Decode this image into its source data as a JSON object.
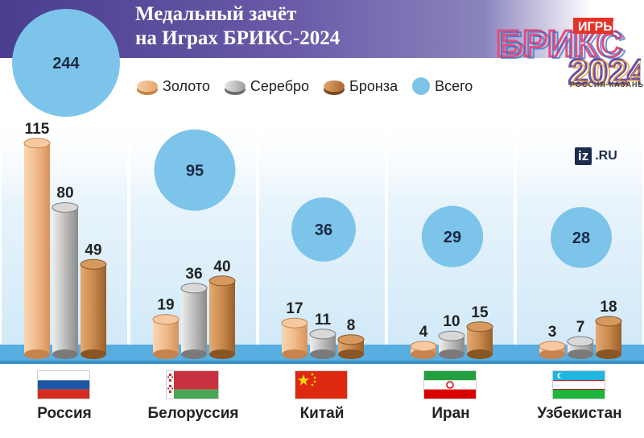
{
  "title_line1": "Медальный зачёт",
  "title_line2": "на Играх БРИКС-2024",
  "legend": {
    "gold": "Золото",
    "silver": "Серебро",
    "bronze": "Бронза",
    "total": "Всего"
  },
  "logo": {
    "word1": "БРИКС",
    "word2": "ИГРЫ",
    "year": "2024",
    "subtitle": "РОССИЯ-КАЗАНЬ"
  },
  "watermark": {
    "iz": "iz",
    "ru": ".RU"
  },
  "colors": {
    "gold": "#e8a36a",
    "silver": "#a3a3a3",
    "bronze": "#b87538",
    "total": "#7cc4ea",
    "header": "#4a3d8f"
  },
  "chart_data": {
    "type": "bar",
    "categories": [
      "Россия",
      "Белоруссия",
      "Китай",
      "Иран",
      "Узбекистан"
    ],
    "series": [
      {
        "name": "Золото",
        "values": [
          115,
          19,
          17,
          4,
          3
        ]
      },
      {
        "name": "Серебро",
        "values": [
          80,
          36,
          11,
          10,
          7
        ]
      },
      {
        "name": "Бронза",
        "values": [
          49,
          40,
          8,
          15,
          18
        ]
      }
    ],
    "totals": {
      "name": "Всего",
      "values": [
        244,
        95,
        36,
        29,
        28
      ]
    },
    "flags": [
      "russia-flag",
      "belarus-flag",
      "china-flag",
      "iran-flag",
      "uzbekistan-flag"
    ]
  }
}
